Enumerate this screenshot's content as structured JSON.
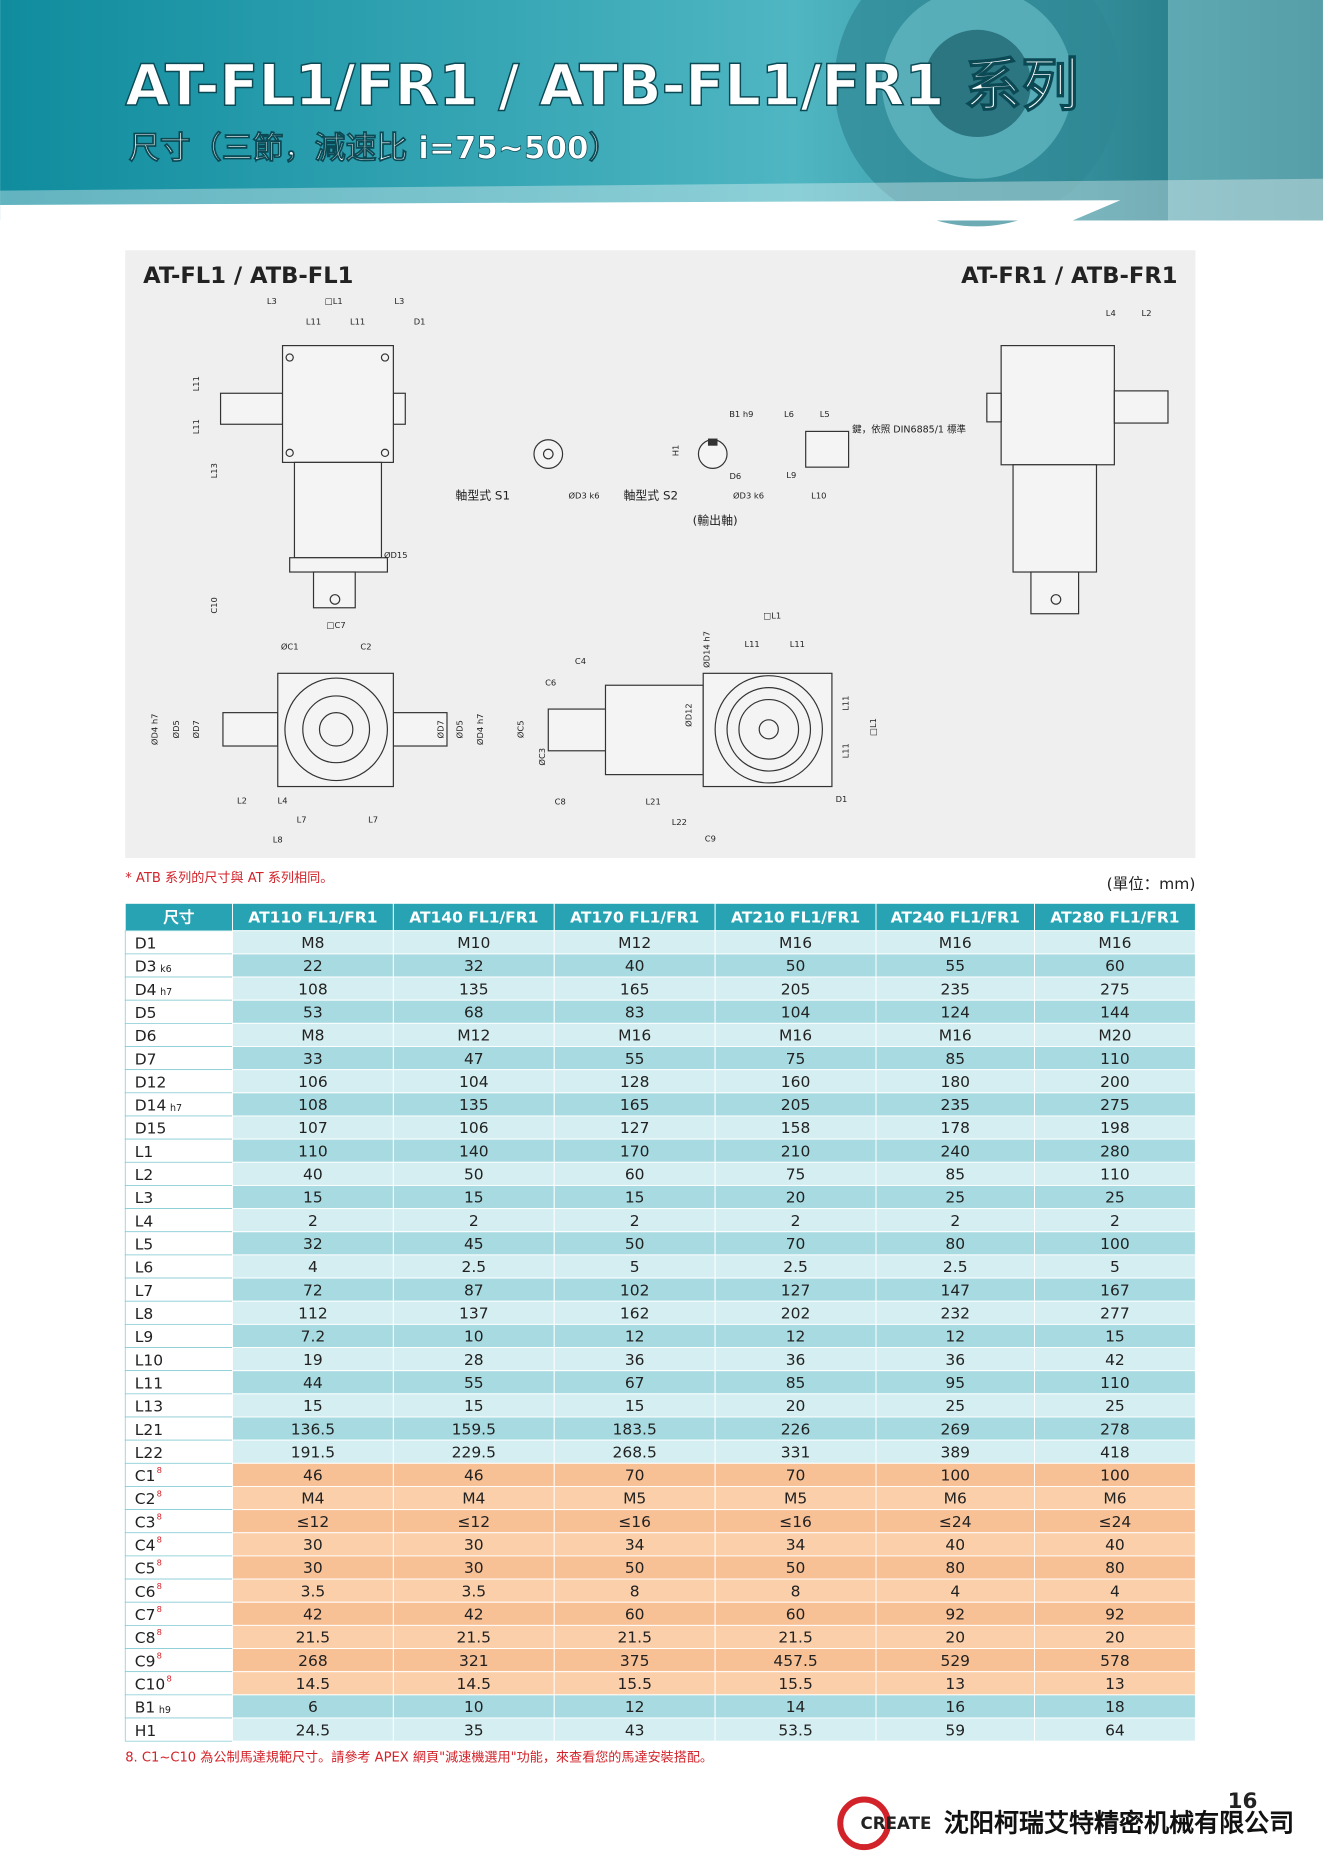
{
  "header": {
    "title": "AT-FL1/FR1 / ATB-FL1/FR1 系列",
    "subtitle": "尺寸（三節，減速比 i=75~500）"
  },
  "drawing": {
    "title_left": "AT-FL1 / ATB-FL1",
    "title_right": "AT-FR1 / ATB-FR1",
    "notes": [
      "軸型式 S1",
      "軸型式 S2",
      "(輸出軸)",
      "鍵，依照 DIN6885/1 標準"
    ],
    "labels": [
      "L3",
      "□L1",
      "L3",
      "L11",
      "L11",
      "D1",
      "L11",
      "L11",
      "L13",
      "ØD15",
      "C10",
      "□C7",
      "ØC1",
      "C2",
      "ØD4 h7",
      "ØD5",
      "ØD7",
      "ØD7",
      "ØD5",
      "ØD4 h7",
      "L2",
      "L4",
      "L7",
      "L7",
      "L8",
      "B1 h9",
      "L6",
      "L5",
      "H1",
      "D6",
      "ØD3 k6",
      "ØD3 k6",
      "L9",
      "L10",
      "L4",
      "L2",
      "□L1",
      "L11",
      "L11",
      "ØD14 h7",
      "C4",
      "C6",
      "ØC5",
      "ØC3",
      "ØD12",
      "L11",
      "L11",
      "□L1",
      "D1",
      "C8",
      "L21",
      "L22",
      "C9"
    ]
  },
  "note": "* ATB 系列的尺寸與 AT 系列相同。",
  "unit": "(單位：mm)",
  "table": {
    "header": [
      "尺寸",
      "AT110 FL1/FR1",
      "AT140 FL1/FR1",
      "AT170 FL1/FR1",
      "AT210 FL1/FR1",
      "AT240 FL1/FR1",
      "AT280 FL1/FR1"
    ],
    "rows": [
      {
        "label": "D1",
        "cells": [
          "M8",
          "M10",
          "M12",
          "M16",
          "M16",
          "M16"
        ]
      },
      {
        "label": "D3",
        "sub": "k6",
        "cells": [
          "22",
          "32",
          "40",
          "50",
          "55",
          "60"
        ]
      },
      {
        "label": "D4",
        "sub": "h7",
        "cells": [
          "108",
          "135",
          "165",
          "205",
          "235",
          "275"
        ]
      },
      {
        "label": "D5",
        "cells": [
          "53",
          "68",
          "83",
          "104",
          "124",
          "144"
        ]
      },
      {
        "label": "D6",
        "cells": [
          "M8",
          "M12",
          "M16",
          "M16",
          "M16",
          "M20"
        ]
      },
      {
        "label": "D7",
        "cells": [
          "33",
          "47",
          "55",
          "75",
          "85",
          "110"
        ]
      },
      {
        "label": "D12",
        "cells": [
          "106",
          "104",
          "128",
          "160",
          "180",
          "200"
        ]
      },
      {
        "label": "D14",
        "sub": "h7",
        "cells": [
          "108",
          "135",
          "165",
          "205",
          "235",
          "275"
        ]
      },
      {
        "label": "D15",
        "cells": [
          "107",
          "106",
          "127",
          "158",
          "178",
          "198"
        ]
      },
      {
        "label": "L1",
        "cells": [
          "110",
          "140",
          "170",
          "210",
          "240",
          "280"
        ]
      },
      {
        "label": "L2",
        "cells": [
          "40",
          "50",
          "60",
          "75",
          "85",
          "110"
        ]
      },
      {
        "label": "L3",
        "cells": [
          "15",
          "15",
          "15",
          "20",
          "25",
          "25"
        ]
      },
      {
        "label": "L4",
        "cells": [
          "2",
          "2",
          "2",
          "2",
          "2",
          "2"
        ]
      },
      {
        "label": "L5",
        "cells": [
          "32",
          "45",
          "50",
          "70",
          "80",
          "100"
        ]
      },
      {
        "label": "L6",
        "cells": [
          "4",
          "2.5",
          "5",
          "2.5",
          "2.5",
          "5"
        ]
      },
      {
        "label": "L7",
        "cells": [
          "72",
          "87",
          "102",
          "127",
          "147",
          "167"
        ]
      },
      {
        "label": "L8",
        "cells": [
          "112",
          "137",
          "162",
          "202",
          "232",
          "277"
        ]
      },
      {
        "label": "L9",
        "cells": [
          "7.2",
          "10",
          "12",
          "12",
          "12",
          "15"
        ]
      },
      {
        "label": "L10",
        "cells": [
          "19",
          "28",
          "36",
          "36",
          "36",
          "42"
        ]
      },
      {
        "label": "L11",
        "cells": [
          "44",
          "55",
          "67",
          "85",
          "95",
          "110"
        ]
      },
      {
        "label": "L13",
        "cells": [
          "15",
          "15",
          "15",
          "20",
          "25",
          "25"
        ]
      },
      {
        "label": "L21",
        "cells": [
          "136.5",
          "159.5",
          "183.5",
          "226",
          "269",
          "278"
        ]
      },
      {
        "label": "L22",
        "cells": [
          "191.5",
          "229.5",
          "268.5",
          "331",
          "389",
          "418"
        ]
      },
      {
        "label": "C1",
        "sup": "8",
        "cells": [
          "46",
          "46",
          "70",
          "70",
          "100",
          "100"
        ]
      },
      {
        "label": "C2",
        "sup": "8",
        "cells": [
          "M4",
          "M4",
          "M5",
          "M5",
          "M6",
          "M6"
        ]
      },
      {
        "label": "C3",
        "sup": "8",
        "cells": [
          "≤12",
          "≤12",
          "≤16",
          "≤16",
          "≤24",
          "≤24"
        ]
      },
      {
        "label": "C4",
        "sup": "8",
        "cells": [
          "30",
          "30",
          "34",
          "34",
          "40",
          "40"
        ]
      },
      {
        "label": "C5",
        "sup": "8",
        "cells": [
          "30",
          "30",
          "50",
          "50",
          "80",
          "80"
        ]
      },
      {
        "label": "C6",
        "sup": "8",
        "cells": [
          "3.5",
          "3.5",
          "8",
          "8",
          "4",
          "4"
        ]
      },
      {
        "label": "C7",
        "sup": "8",
        "cells": [
          "42",
          "42",
          "60",
          "60",
          "92",
          "92"
        ]
      },
      {
        "label": "C8",
        "sup": "8",
        "cells": [
          "21.5",
          "21.5",
          "21.5",
          "21.5",
          "20",
          "20"
        ]
      },
      {
        "label": "C9",
        "sup": "8",
        "cells": [
          "268",
          "321",
          "375",
          "457.5",
          "529",
          "578"
        ]
      },
      {
        "label": "C10",
        "sup": "8",
        "cells": [
          "14.5",
          "14.5",
          "15.5",
          "15.5",
          "13",
          "13"
        ]
      },
      {
        "label": "B1",
        "sub": "h9",
        "cells": [
          "6",
          "10",
          "12",
          "14",
          "16",
          "18"
        ]
      },
      {
        "label": "H1",
        "cells": [
          "24.5",
          "35",
          "43",
          "53.5",
          "59",
          "64"
        ]
      }
    ]
  },
  "footnote": "8. C1~C10 為公制馬達規範尺寸。請參考 APEX 網頁\"減速機選用\"功能，來查看您的馬達安裝搭配。",
  "footer": {
    "logo": "CREATE",
    "company": "沈阳柯瑞艾特精密机械有限公司",
    "page": "16"
  }
}
